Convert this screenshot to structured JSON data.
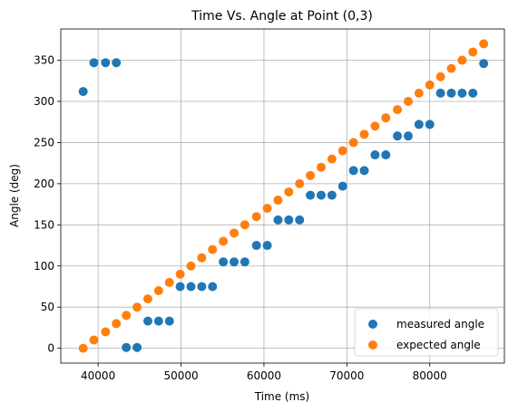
{
  "chart_data": {
    "type": "scatter",
    "title": "Time Vs. Angle at Point (0,3)",
    "xlabel": "Time (ms)",
    "ylabel": "Angle (deg)",
    "xlim": [
      35500,
      89000
    ],
    "ylim": [
      -18,
      388
    ],
    "xticks": [
      40000,
      50000,
      60000,
      70000,
      80000
    ],
    "yticks": [
      0,
      50,
      100,
      150,
      200,
      250,
      300,
      350
    ],
    "grid": true,
    "legend_position": "lower-right",
    "series": [
      {
        "name": "measured angle",
        "color": "#1f77b4",
        "x": [
          38200,
          39500,
          40900,
          42200,
          43400,
          44700,
          46000,
          47300,
          48600,
          49900,
          51200,
          52500,
          53800,
          55100,
          56400,
          57700,
          59100,
          60400,
          61700,
          63000,
          64300,
          65600,
          66900,
          68200,
          69500,
          70800,
          72100,
          73400,
          74700,
          76100,
          77400,
          78700,
          80000,
          81300,
          82600,
          83900,
          85200,
          86500
        ],
        "y": [
          312,
          347,
          347,
          347,
          1,
          1,
          33,
          33,
          33,
          75,
          75,
          75,
          75,
          105,
          105,
          105,
          125,
          125,
          156,
          156,
          156,
          186,
          186,
          186,
          197,
          216,
          216,
          235,
          235,
          258,
          258,
          272,
          272,
          310,
          310,
          310,
          310,
          346
        ]
      },
      {
        "name": "expected angle",
        "color": "#ff7f0e",
        "x": [
          38200,
          39500,
          40900,
          42200,
          43400,
          44700,
          46000,
          47300,
          48600,
          49900,
          51200,
          52500,
          53800,
          55100,
          56400,
          57700,
          59100,
          60400,
          61700,
          63000,
          64300,
          65600,
          66900,
          68200,
          69500,
          70800,
          72100,
          73400,
          74700,
          76100,
          77400,
          78700,
          80000,
          81300,
          82600,
          83900,
          85200,
          86500
        ],
        "y": [
          0,
          10,
          20,
          30,
          40,
          50,
          60,
          70,
          80,
          90,
          100,
          110,
          120,
          130,
          140,
          150,
          160,
          170,
          180,
          190,
          200,
          210,
          220,
          230,
          240,
          250,
          260,
          270,
          280,
          290,
          300,
          310,
          320,
          330,
          340,
          350,
          360,
          370
        ]
      }
    ]
  }
}
